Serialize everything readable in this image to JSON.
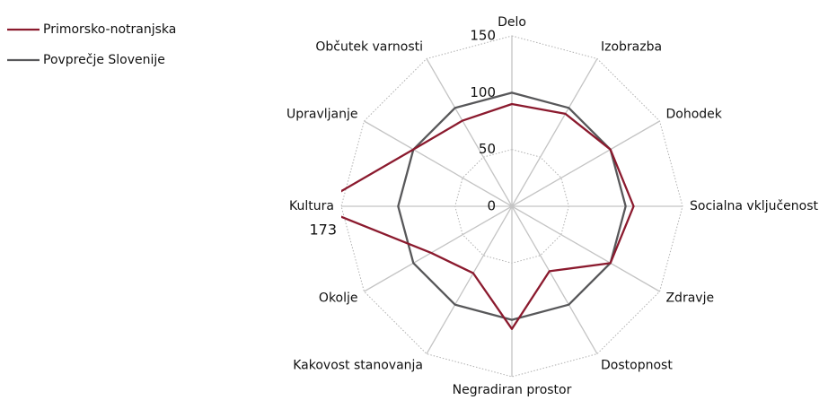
{
  "chart_data": {
    "type": "radar",
    "categories": [
      "Delo",
      "Izobrazba",
      "Dohodek",
      "Socialna vključenost",
      "Zdravje",
      "Dostopnost",
      "Negradiran prostor",
      "Kakovost stanovanja",
      "Okolje",
      "Kultura",
      "Upravljanje",
      "Občutek varnosti"
    ],
    "series": [
      {
        "name": "Primorsko-notranjska",
        "color": "#8b1a2e",
        "values": [
          90,
          94,
          100,
          107,
          100,
          66,
          108,
          68,
          82,
          173,
          100,
          87
        ]
      },
      {
        "name": "Povprečje Slovenije",
        "color": "#58585a",
        "values": [
          100,
          100,
          100,
          100,
          100,
          100,
          100,
          100,
          100,
          100,
          100,
          100
        ]
      }
    ],
    "ylim": [
      0,
      150
    ],
    "yticks": [
      0,
      50,
      100,
      150
    ],
    "grid": true,
    "legend": "top-left"
  }
}
